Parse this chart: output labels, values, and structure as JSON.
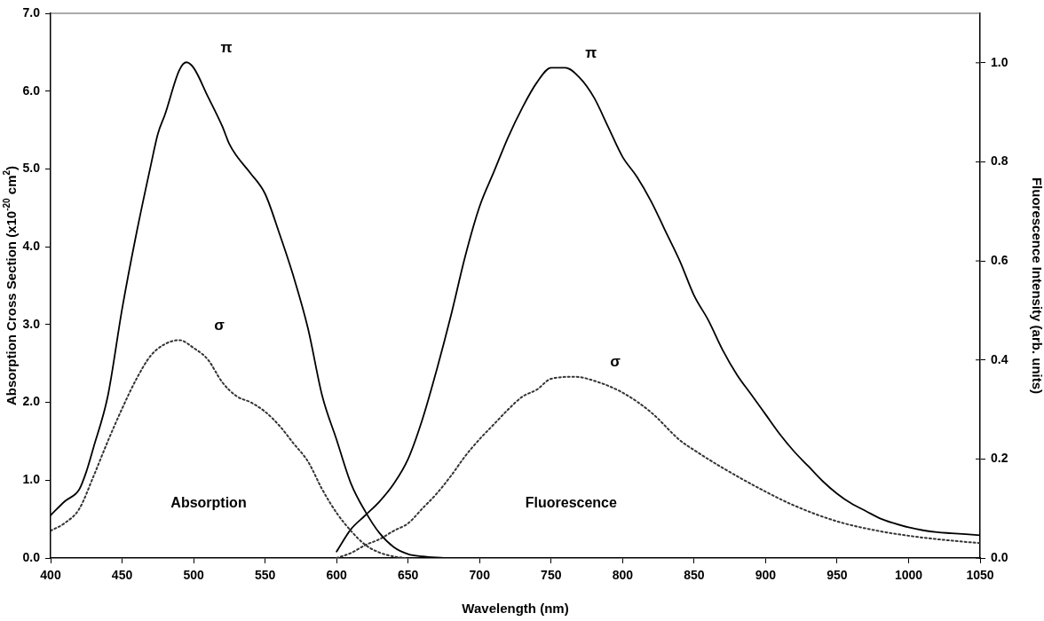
{
  "chart_data": {
    "type": "line",
    "xlabel": "Wavelength (nm)",
    "ylabel": "Absorption Cross Section (x10$^{-20}$ cm$^{2}$)",
    "y2label": "Fluorescence Intensity (arb. units)",
    "xlim": [
      400,
      1050
    ],
    "xticks": [
      400,
      450,
      500,
      550,
      600,
      650,
      700,
      750,
      800,
      850,
      900,
      950,
      1000,
      1050
    ],
    "ylim": [
      0,
      7
    ],
    "yticks": [
      {
        "value": 0,
        "label": "0.0"
      },
      {
        "value": 1,
        "label": "1.0"
      },
      {
        "value": 2,
        "label": "2.0"
      },
      {
        "value": 3,
        "label": "3.0"
      },
      {
        "value": 4,
        "label": "4.0"
      },
      {
        "value": 5,
        "label": "5.0"
      },
      {
        "value": 6,
        "label": "6.0"
      },
      {
        "value": 7,
        "label": "7.0"
      }
    ],
    "y2lim": [
      0,
      1.1
    ],
    "y2ticks": [
      {
        "value": 0,
        "label": "0.0"
      },
      0.2,
      0.4,
      0.6,
      0.8,
      {
        "value": 1,
        "label": "1.0"
      }
    ],
    "grid": false,
    "legend": false,
    "series": [
      {
        "name": "π",
        "color": "#000000",
        "line_style": "solid",
        "x": [
          400,
          410,
          420,
          425,
          430,
          440,
          450,
          460,
          470,
          475,
          480,
          490,
          495,
          500,
          510,
          520,
          525,
          530,
          540,
          550,
          560,
          570,
          580,
          590,
          600,
          610,
          620,
          630,
          640,
          650,
          660,
          675
        ],
        "values": [
          0.55,
          0.73,
          0.88,
          1.11,
          1.42,
          2.08,
          3.2,
          4.17,
          5.04,
          5.45,
          5.7,
          6.27,
          6.37,
          6.3,
          5.93,
          5.55,
          5.32,
          5.17,
          4.94,
          4.68,
          4.17,
          3.61,
          2.95,
          2.08,
          1.52,
          0.96,
          0.6,
          0.32,
          0.14,
          0.05,
          0.02,
          0
        ]
      },
      {
        "name": "σ",
        "color": "#333333",
        "line_style": "dotted",
        "x": [
          400,
          410,
          420,
          430,
          440,
          450,
          460,
          470,
          480,
          490,
          500,
          510,
          520,
          530,
          540,
          550,
          560,
          570,
          580,
          590,
          600,
          610,
          620,
          630,
          640,
          648
        ],
        "values": [
          0.35,
          0.45,
          0.63,
          1.05,
          1.5,
          1.92,
          2.3,
          2.6,
          2.75,
          2.8,
          2.7,
          2.55,
          2.26,
          2.08,
          2.0,
          1.88,
          1.7,
          1.47,
          1.24,
          0.88,
          0.58,
          0.35,
          0.17,
          0.07,
          0.02,
          0
        ]
      },
      {
        "name": "π",
        "color": "#000000",
        "line_style": "solid",
        "axis": "y2",
        "x": [
          600,
          610,
          620,
          630,
          640,
          650,
          660,
          670,
          680,
          690,
          700,
          710,
          720,
          730,
          740,
          750,
          755,
          760,
          770,
          780,
          790,
          800,
          810,
          820,
          830,
          840,
          850,
          860,
          870,
          880,
          890,
          900,
          910,
          920,
          930,
          940,
          950,
          960,
          970,
          980,
          990,
          1000,
          1010,
          1020,
          1030,
          1040,
          1050
        ],
        "values": [
          0.013,
          0.058,
          0.086,
          0.114,
          0.15,
          0.2,
          0.28,
          0.38,
          0.49,
          0.61,
          0.71,
          0.78,
          0.85,
          0.91,
          0.96,
          0.99,
          0.99,
          0.99,
          0.97,
          0.93,
          0.87,
          0.81,
          0.77,
          0.72,
          0.66,
          0.6,
          0.53,
          0.48,
          0.42,
          0.37,
          0.33,
          0.29,
          0.25,
          0.215,
          0.185,
          0.155,
          0.13,
          0.11,
          0.095,
          0.08,
          0.07,
          0.062,
          0.056,
          0.052,
          0.05,
          0.048,
          0.046
        ]
      },
      {
        "name": "σ",
        "color": "#333333",
        "line_style": "dotted",
        "axis": "y2",
        "x": [
          600,
          610,
          620,
          630,
          640,
          650,
          660,
          670,
          680,
          690,
          700,
          710,
          720,
          730,
          740,
          750,
          767,
          780,
          800,
          820,
          840,
          850,
          870,
          900,
          920,
          950,
          980,
          1000,
          1020,
          1050
        ],
        "values": [
          0,
          0.01,
          0.026,
          0.038,
          0.055,
          0.07,
          0.1,
          0.13,
          0.166,
          0.206,
          0.24,
          0.27,
          0.3,
          0.326,
          0.34,
          0.362,
          0.366,
          0.358,
          0.334,
          0.294,
          0.238,
          0.218,
          0.182,
          0.134,
          0.106,
          0.074,
          0.054,
          0.045,
          0.038,
          0.03
        ]
      }
    ],
    "annotations": [
      "Absorption",
      "Fluorescence"
    ]
  }
}
